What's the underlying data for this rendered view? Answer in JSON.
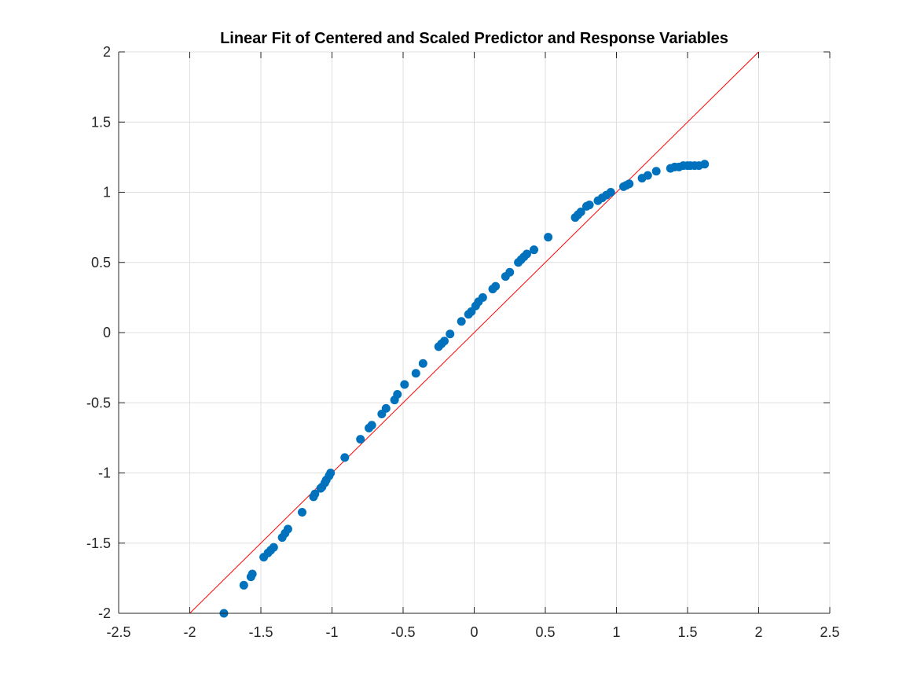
{
  "chart_data": {
    "type": "scatter",
    "title": "Linear Fit of Centered and Scaled Predictor and Response Variables",
    "xlabel": "",
    "ylabel": "",
    "xlim": [
      -2.5,
      2.5
    ],
    "ylim": [
      -2,
      2
    ],
    "grid": true,
    "xticks": [
      "-2.5",
      "-2",
      "-1.5",
      "-1",
      "-0.5",
      "0",
      "0.5",
      "1",
      "1.5",
      "2",
      "2.5"
    ],
    "yticks": [
      "-2",
      "-1.5",
      "-1",
      "-0.5",
      "0",
      "0.5",
      "1",
      "1.5",
      "2"
    ],
    "colors": {
      "points": "#0072BD",
      "fit_line": "#FF0000",
      "grid": "#DFDFDF",
      "axis": "#262626"
    },
    "fit_line": {
      "x": [
        -2,
        2
      ],
      "y": [
        -2,
        2
      ]
    },
    "series": [
      {
        "points": [
          [
            -1.76,
            -2.0
          ],
          [
            -1.62,
            -1.8
          ],
          [
            -1.57,
            -1.74
          ],
          [
            -1.56,
            -1.72
          ],
          [
            -1.48,
            -1.6
          ],
          [
            -1.45,
            -1.57
          ],
          [
            -1.43,
            -1.55
          ],
          [
            -1.41,
            -1.53
          ],
          [
            -1.35,
            -1.46
          ],
          [
            -1.33,
            -1.43
          ],
          [
            -1.31,
            -1.4
          ],
          [
            -1.21,
            -1.28
          ],
          [
            -1.13,
            -1.17
          ],
          [
            -1.12,
            -1.15
          ],
          [
            -1.08,
            -1.11
          ],
          [
            -1.07,
            -1.1
          ],
          [
            -1.05,
            -1.07
          ],
          [
            -1.04,
            -1.05
          ],
          [
            -1.02,
            -1.02
          ],
          [
            -1.01,
            -1.0
          ],
          [
            -0.91,
            -0.89
          ],
          [
            -0.8,
            -0.76
          ],
          [
            -0.74,
            -0.68
          ],
          [
            -0.72,
            -0.66
          ],
          [
            -0.65,
            -0.58
          ],
          [
            -0.62,
            -0.54
          ],
          [
            -0.56,
            -0.48
          ],
          [
            -0.54,
            -0.44
          ],
          [
            -0.49,
            -0.37
          ],
          [
            -0.41,
            -0.29
          ],
          [
            -0.36,
            -0.22
          ],
          [
            -0.25,
            -0.1
          ],
          [
            -0.23,
            -0.08
          ],
          [
            -0.21,
            -0.06
          ],
          [
            -0.17,
            -0.01
          ],
          [
            -0.09,
            0.08
          ],
          [
            -0.04,
            0.13
          ],
          [
            -0.02,
            0.15
          ],
          [
            0.01,
            0.19
          ],
          [
            0.03,
            0.22
          ],
          [
            0.06,
            0.25
          ],
          [
            0.13,
            0.31
          ],
          [
            0.15,
            0.33
          ],
          [
            0.22,
            0.4
          ],
          [
            0.25,
            0.43
          ],
          [
            0.31,
            0.5
          ],
          [
            0.33,
            0.52
          ],
          [
            0.35,
            0.54
          ],
          [
            0.37,
            0.56
          ],
          [
            0.42,
            0.59
          ],
          [
            0.52,
            0.68
          ],
          [
            0.71,
            0.82
          ],
          [
            0.73,
            0.84
          ],
          [
            0.75,
            0.86
          ],
          [
            0.79,
            0.9
          ],
          [
            0.81,
            0.91
          ],
          [
            0.87,
            0.94
          ],
          [
            0.9,
            0.96
          ],
          [
            0.93,
            0.98
          ],
          [
            0.96,
            1.0
          ],
          [
            1.05,
            1.04
          ],
          [
            1.07,
            1.05
          ],
          [
            1.09,
            1.06
          ],
          [
            1.18,
            1.1
          ],
          [
            1.22,
            1.12
          ],
          [
            1.28,
            1.15
          ],
          [
            1.38,
            1.17
          ],
          [
            1.41,
            1.18
          ],
          [
            1.44,
            1.18
          ],
          [
            1.47,
            1.19
          ],
          [
            1.5,
            1.19
          ],
          [
            1.52,
            1.19
          ],
          [
            1.55,
            1.19
          ],
          [
            1.58,
            1.19
          ],
          [
            1.62,
            1.2
          ]
        ]
      }
    ]
  }
}
